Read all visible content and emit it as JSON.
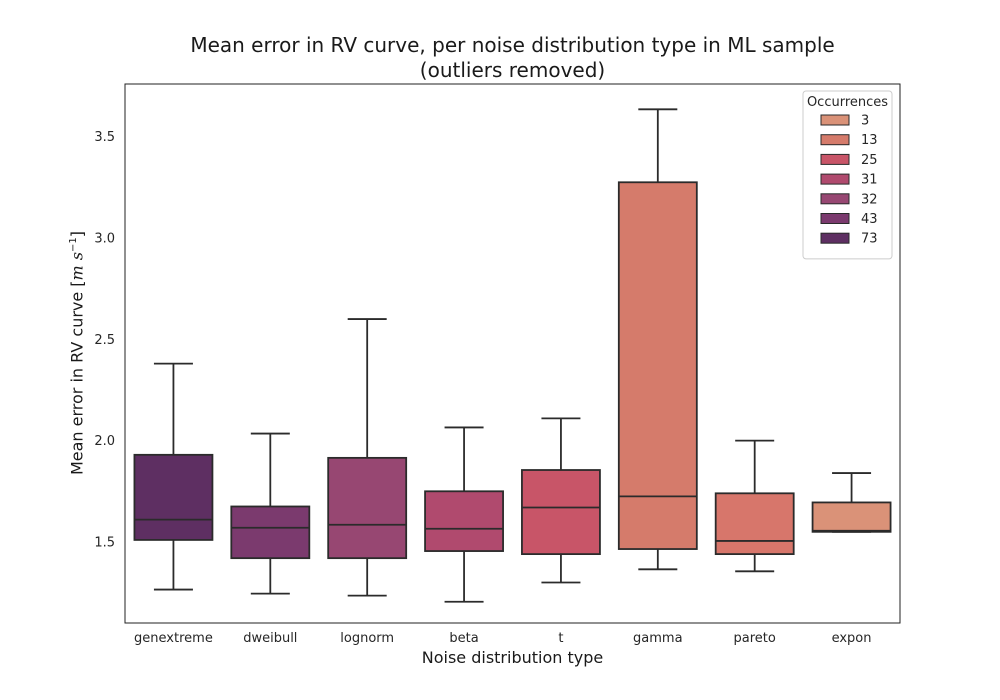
{
  "chart_data": {
    "type": "box",
    "title": [
      "Mean error in RV curve, per noise distribution type in ML sample",
      "(outliers removed)"
    ],
    "xlabel": "Noise distribution type",
    "ylabel_text": "Mean error in RV curve [",
    "ylabel_unit_m": "m",
    "ylabel_unit_s": "s",
    "ylabel_unit_exp": "−1",
    "ylabel_close": "]",
    "ylim": [
      1.1,
      3.76
    ],
    "yticks": [
      1.5,
      2.0,
      2.5,
      3.0,
      3.5
    ],
    "ytick_labels": [
      "1.5",
      "2.0",
      "2.5",
      "3.0",
      "3.5"
    ],
    "categories": [
      "genextreme",
      "dweibull",
      "lognorm",
      "beta",
      "t",
      "gamma",
      "pareto",
      "expon"
    ],
    "boxes": [
      {
        "name": "genextreme",
        "whislo": 1.265,
        "q1": 1.51,
        "med": 1.61,
        "q3": 1.93,
        "whishi": 2.38,
        "color": "#5e2f62"
      },
      {
        "name": "dweibull",
        "whislo": 1.245,
        "q1": 1.42,
        "med": 1.57,
        "q3": 1.675,
        "whishi": 2.035,
        "color": "#7b3a6e"
      },
      {
        "name": "lognorm",
        "whislo": 1.235,
        "q1": 1.42,
        "med": 1.585,
        "q3": 1.915,
        "whishi": 2.6,
        "color": "#974772"
      },
      {
        "name": "beta",
        "whislo": 1.205,
        "q1": 1.455,
        "med": 1.565,
        "q3": 1.75,
        "whishi": 2.065,
        "color": "#b04a6e"
      },
      {
        "name": "t",
        "whislo": 1.3,
        "q1": 1.44,
        "med": 1.67,
        "q3": 1.855,
        "whishi": 2.11,
        "color": "#c85568"
      },
      {
        "name": "gamma",
        "whislo": 1.365,
        "q1": 1.465,
        "med": 1.725,
        "q3": 3.275,
        "whishi": 3.635,
        "color": "#d57b6b"
      },
      {
        "name": "pareto",
        "whislo": 1.355,
        "q1": 1.44,
        "med": 1.505,
        "q3": 1.74,
        "whishi": 2.0,
        "color": "#d7766b"
      },
      {
        "name": "expon",
        "whislo": 1.55,
        "q1": 1.55,
        "med": 1.555,
        "q3": 1.695,
        "whishi": 1.84,
        "color": "#da9278"
      }
    ],
    "legend": {
      "title": "Occurrences",
      "placement": "top-right",
      "entries": [
        {
          "label": "3",
          "color": "#da9278"
        },
        {
          "label": "13",
          "color": "#d57b6b"
        },
        {
          "label": "25",
          "color": "#c85568"
        },
        {
          "label": "31",
          "color": "#b04a6e"
        },
        {
          "label": "32",
          "color": "#974772"
        },
        {
          "label": "43",
          "color": "#7b3a6e"
        },
        {
          "label": "73",
          "color": "#5e2f62"
        }
      ]
    },
    "grid": false
  }
}
